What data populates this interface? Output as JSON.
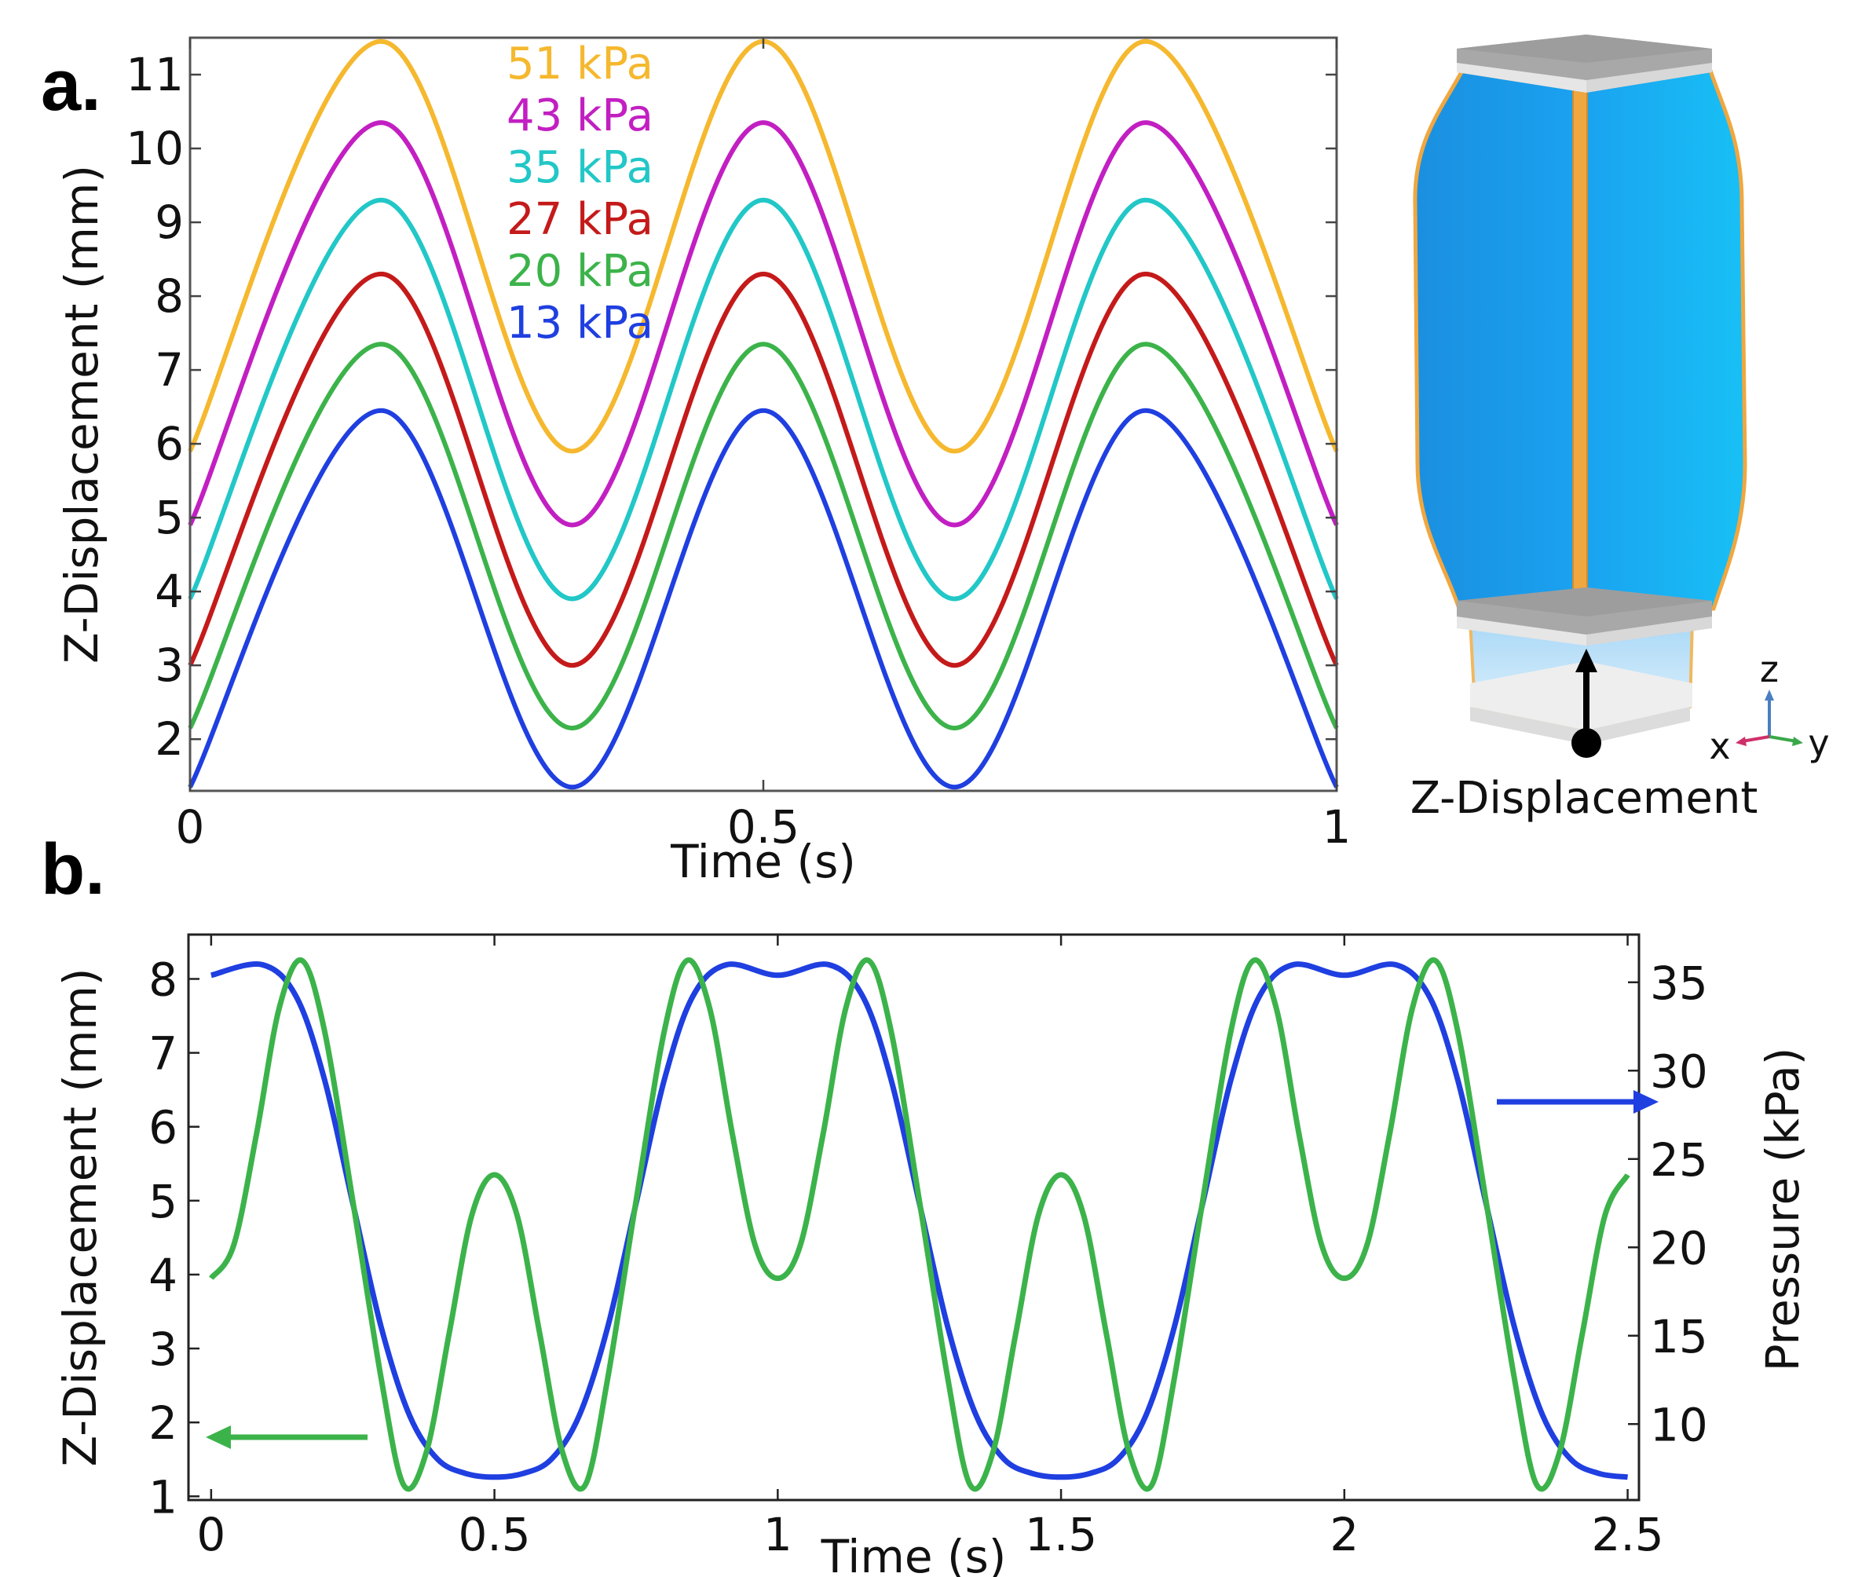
{
  "panel_labels": {
    "a": "a.",
    "b": "b."
  },
  "chart_data": [
    {
      "type": "line",
      "xlabel": "Time (s)",
      "ylabel": "Z-Displacement (mm)",
      "xlim": [
        0,
        1
      ],
      "ylim": [
        1.3,
        11.5
      ],
      "xticks": [
        0,
        0.5,
        1
      ],
      "xtick_labels": [
        "0",
        "0.5",
        "1"
      ],
      "yticks": [
        2,
        3,
        4,
        5,
        6,
        7,
        8,
        9,
        10,
        11
      ],
      "ytick_labels": [
        "2",
        "3",
        "4",
        "5",
        "6",
        "7",
        "8",
        "9",
        "10",
        "11"
      ],
      "grid": false,
      "legend_position": "top-center",
      "x": [
        0,
        0.1667,
        0.3333,
        0.5,
        0.6667,
        0.8333,
        1.0
      ],
      "series": [
        {
          "name": "51 kPa",
          "color": "#f5b82e",
          "values": [
            5.9,
            11.45,
            5.9,
            11.45,
            5.9,
            11.45,
            5.9
          ]
        },
        {
          "name": "43 kPa",
          "color": "#c21fc2",
          "values": [
            4.9,
            10.35,
            4.9,
            10.35,
            4.9,
            10.35,
            4.9
          ]
        },
        {
          "name": "35 kPa",
          "color": "#22c7c7",
          "values": [
            3.9,
            9.3,
            3.9,
            9.3,
            3.9,
            9.3,
            3.9
          ]
        },
        {
          "name": "27 kPa",
          "color": "#c41a1a",
          "values": [
            3.0,
            8.3,
            3.0,
            8.3,
            3.0,
            8.3,
            3.0
          ]
        },
        {
          "name": "20 kPa",
          "color": "#3cb34a",
          "values": [
            2.15,
            7.35,
            2.15,
            7.35,
            2.15,
            7.35,
            2.15
          ]
        },
        {
          "name": "13 kPa",
          "color": "#1f3fe0",
          "values": [
            1.35,
            6.45,
            1.35,
            6.45,
            1.35,
            6.45,
            1.35
          ]
        }
      ]
    },
    {
      "type": "line",
      "xlabel": "Time (s)",
      "ylabel": "Z-Displacement (mm)",
      "y2label": "Pressure (kPa)",
      "xlim": [
        -0.04,
        2.52
      ],
      "ylim": [
        0.95,
        8.6
      ],
      "y2lim": [
        5.7,
        37.7
      ],
      "xticks": [
        0,
        0.5,
        1,
        1.5,
        2,
        2.5
      ],
      "xtick_labels": [
        "0",
        "0.5",
        "1",
        "1.5",
        "2",
        "2.5"
      ],
      "yticks": [
        1,
        2,
        3,
        4,
        5,
        6,
        7,
        8
      ],
      "ytick_labels": [
        "1",
        "2",
        "3",
        "4",
        "5",
        "6",
        "7",
        "8"
      ],
      "y2ticks": [
        10,
        15,
        20,
        25,
        30,
        35
      ],
      "y2tick_labels": [
        "10",
        "15",
        "20",
        "25",
        "30",
        "35"
      ],
      "grid": false,
      "series": [
        {
          "color": "#1f3fe0",
          "axis": "right",
          "x": [
            0,
            0.09,
            0.15,
            0.2,
            0.25,
            0.3,
            0.35,
            0.4,
            0.45,
            0.5,
            0.55,
            0.6,
            0.65,
            0.7,
            0.75,
            0.8,
            0.85,
            0.91,
            1.0,
            1.09,
            1.15,
            1.2,
            1.25,
            1.3,
            1.35,
            1.4,
            1.45,
            1.5,
            1.55,
            1.6,
            1.65,
            1.7,
            1.75,
            1.8,
            1.85,
            1.91,
            2.0,
            2.09,
            2.15,
            2.2,
            2.25,
            2.3,
            2.35,
            2.4,
            2.45,
            2.5
          ],
          "values": [
            35.4,
            36.0,
            34.2,
            29.5,
            22.5,
            15.5,
            10.5,
            8.0,
            7.2,
            7.0,
            7.2,
            8.0,
            10.5,
            15.5,
            22.5,
            29.5,
            34.2,
            36.0,
            35.4,
            36.0,
            34.2,
            29.5,
            22.5,
            15.5,
            10.5,
            8.0,
            7.2,
            7.0,
            7.2,
            8.0,
            10.5,
            15.5,
            22.5,
            29.5,
            34.2,
            36.0,
            35.4,
            36.0,
            34.2,
            29.5,
            22.5,
            15.5,
            10.5,
            8.0,
            7.2,
            7.0
          ]
        },
        {
          "color": "#3cb34a",
          "axis": "left",
          "x": [
            0,
            0.04,
            0.08,
            0.12,
            0.16,
            0.2,
            0.25,
            0.3,
            0.34,
            0.38,
            0.42,
            0.46,
            0.5,
            0.54,
            0.58,
            0.62,
            0.66,
            0.7,
            0.75,
            0.8,
            0.84,
            0.88,
            0.92,
            0.96,
            1.0,
            1.04,
            1.08,
            1.12,
            1.16,
            1.2,
            1.25,
            1.3,
            1.34,
            1.38,
            1.42,
            1.46,
            1.5,
            1.54,
            1.58,
            1.62,
            1.66,
            1.7,
            1.75,
            1.8,
            1.84,
            1.88,
            1.92,
            1.96,
            2.0,
            2.04,
            2.08,
            2.12,
            2.16,
            2.2,
            2.25,
            2.3,
            2.34,
            2.38,
            2.42,
            2.46,
            2.5
          ],
          "values": [
            3.95,
            4.4,
            5.9,
            7.6,
            8.25,
            7.3,
            5.0,
            2.6,
            1.15,
            1.6,
            3.2,
            4.8,
            5.35,
            4.8,
            3.2,
            1.6,
            1.15,
            2.6,
            5.0,
            7.3,
            8.25,
            7.6,
            5.9,
            4.4,
            3.95,
            4.4,
            5.9,
            7.6,
            8.25,
            7.3,
            5.0,
            2.6,
            1.15,
            1.6,
            3.2,
            4.8,
            5.35,
            4.8,
            3.2,
            1.6,
            1.15,
            2.6,
            5.0,
            7.3,
            8.25,
            7.6,
            5.9,
            4.4,
            3.95,
            4.4,
            5.9,
            7.6,
            8.25,
            7.3,
            5.0,
            2.6,
            1.15,
            1.6,
            3.2,
            4.8,
            5.35
          ]
        }
      ]
    }
  ],
  "model": {
    "caption": "Z-Displacement",
    "axes_labels": {
      "z": "z",
      "x": "x",
      "y": "y"
    }
  }
}
